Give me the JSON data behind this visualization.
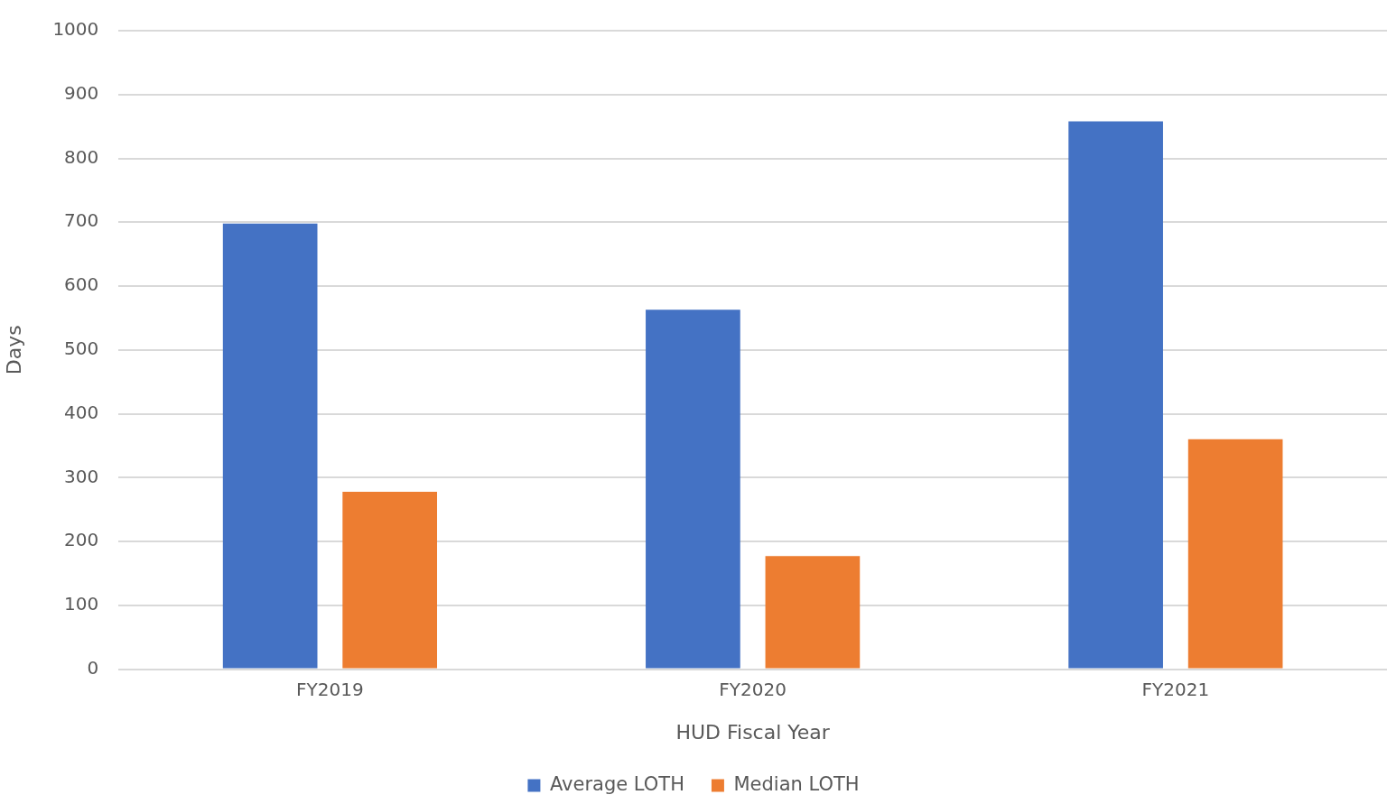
{
  "chart_data": {
    "type": "bar",
    "xlabel": "HUD Fiscal Year",
    "ylabel": "Days",
    "categories": [
      "FY2019",
      "FY2020",
      "FY2021"
    ],
    "series": [
      {
        "name": "Average LOTH",
        "color": "#4472c4",
        "values": [
          698,
          563,
          858
        ]
      },
      {
        "name": "Median LOTH",
        "color": "#ed7d31",
        "values": [
          278,
          177,
          360
        ]
      }
    ],
    "ylim": [
      0,
      1000
    ],
    "yticks": [
      0,
      100,
      200,
      300,
      400,
      500,
      600,
      700,
      800,
      900,
      1000
    ],
    "grid": "y",
    "legend": "bottom"
  }
}
